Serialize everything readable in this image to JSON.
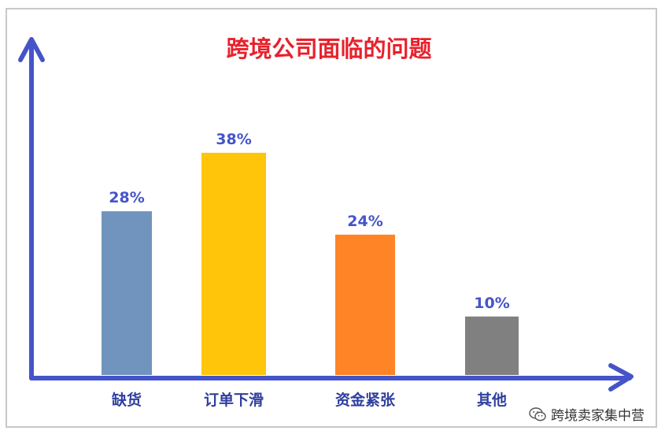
{
  "colors": {
    "axis": "#4554c9",
    "title": "#e8212c",
    "value_label": "#4554c9",
    "cat_label": "#2f3f9f",
    "frame_border": "#c8c8c8"
  },
  "watermark": {
    "icon": "wechat-icon",
    "text": "跨境卖家集中营"
  },
  "chart_data": {
    "type": "bar",
    "title": "跨境公司面临的问题",
    "xlabel": "",
    "ylabel": "",
    "categories": [
      "缺货",
      "订单下滑",
      "资金紧张",
      "其他"
    ],
    "values": [
      28,
      38,
      24,
      10
    ],
    "value_labels": [
      "28%",
      "38%",
      "24%",
      "10%"
    ],
    "bar_colors": [
      "#7094bd",
      "#ffc50b",
      "#ff8426",
      "#808080"
    ],
    "ylim": [
      0,
      52
    ],
    "grid": false,
    "legend": "none"
  }
}
